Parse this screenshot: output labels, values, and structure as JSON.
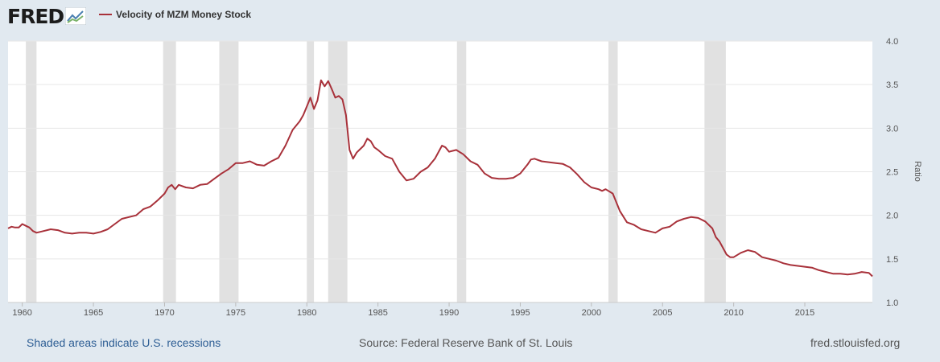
{
  "brand": {
    "logo_text": "FRED",
    "logo_icon": "chart-line-icon"
  },
  "colors": {
    "background": "#e1e9f0",
    "plot_bg": "#ffffff",
    "series": "#a8313a",
    "recession": "#e1e1e1",
    "grid": "#e6e6e6",
    "footer_link": "#2f5f95"
  },
  "footer": {
    "recessions_note": "Shaded areas indicate U.S. recessions",
    "source": "Source: Federal Reserve Bank of St. Louis",
    "site": "fred.stlouisfed.org"
  },
  "chart_data": {
    "type": "line",
    "title": "",
    "xlabel": "",
    "ylabel": "Ratio",
    "xlim": [
      1959.0,
      2019.75
    ],
    "ylim": [
      1.0,
      4.0
    ],
    "grid": true,
    "legend": "top-left",
    "x_ticks": [
      {
        "value": 1960,
        "label": "1960"
      },
      {
        "value": 1965,
        "label": "1965"
      },
      {
        "value": 1970,
        "label": "1970"
      },
      {
        "value": 1975,
        "label": "1975"
      },
      {
        "value": 1980,
        "label": "1980"
      },
      {
        "value": 1985,
        "label": "1985"
      },
      {
        "value": 1990,
        "label": "1990"
      },
      {
        "value": 1995,
        "label": "1995"
      },
      {
        "value": 2000,
        "label": "2000"
      },
      {
        "value": 2005,
        "label": "2005"
      },
      {
        "value": 2010,
        "label": "2010"
      },
      {
        "value": 2015,
        "label": "2015"
      }
    ],
    "y_ticks": [
      {
        "value": 1.0,
        "label": "1.0"
      },
      {
        "value": 1.5,
        "label": "1.5"
      },
      {
        "value": 2.0,
        "label": "2.0"
      },
      {
        "value": 2.5,
        "label": "2.5"
      },
      {
        "value": 3.0,
        "label": "3.0"
      },
      {
        "value": 3.5,
        "label": "3.5"
      },
      {
        "value": 4.0,
        "label": "4.0"
      }
    ],
    "recessions": [
      [
        1960.25,
        1961.0
      ],
      [
        1969.9,
        1970.8
      ],
      [
        1973.85,
        1975.2
      ],
      [
        1980.0,
        1980.5
      ],
      [
        1981.5,
        1982.85
      ],
      [
        1990.55,
        1991.2
      ],
      [
        2001.2,
        2001.85
      ],
      [
        2007.95,
        2009.45
      ]
    ],
    "series": [
      {
        "name": "Velocity of MZM Money Stock",
        "points": [
          [
            1959.0,
            1.85
          ],
          [
            1959.25,
            1.87
          ],
          [
            1959.5,
            1.86
          ],
          [
            1959.75,
            1.86
          ],
          [
            1960.0,
            1.9
          ],
          [
            1960.25,
            1.88
          ],
          [
            1960.5,
            1.86
          ],
          [
            1960.75,
            1.82
          ],
          [
            1961.0,
            1.8
          ],
          [
            1961.5,
            1.82
          ],
          [
            1962.0,
            1.84
          ],
          [
            1962.5,
            1.83
          ],
          [
            1963.0,
            1.8
          ],
          [
            1963.5,
            1.79
          ],
          [
            1964.0,
            1.8
          ],
          [
            1964.5,
            1.8
          ],
          [
            1965.0,
            1.79
          ],
          [
            1965.5,
            1.81
          ],
          [
            1966.0,
            1.84
          ],
          [
            1966.5,
            1.9
          ],
          [
            1967.0,
            1.96
          ],
          [
            1967.5,
            1.98
          ],
          [
            1968.0,
            2.0
          ],
          [
            1968.5,
            2.07
          ],
          [
            1969.0,
            2.1
          ],
          [
            1969.5,
            2.17
          ],
          [
            1970.0,
            2.25
          ],
          [
            1970.25,
            2.32
          ],
          [
            1970.5,
            2.35
          ],
          [
            1970.75,
            2.3
          ],
          [
            1971.0,
            2.35
          ],
          [
            1971.5,
            2.32
          ],
          [
            1972.0,
            2.31
          ],
          [
            1972.5,
            2.35
          ],
          [
            1973.0,
            2.36
          ],
          [
            1973.5,
            2.42
          ],
          [
            1974.0,
            2.48
          ],
          [
            1974.5,
            2.53
          ],
          [
            1975.0,
            2.6
          ],
          [
            1975.5,
            2.6
          ],
          [
            1976.0,
            2.62
          ],
          [
            1976.5,
            2.58
          ],
          [
            1977.0,
            2.57
          ],
          [
            1977.5,
            2.62
          ],
          [
            1978.0,
            2.66
          ],
          [
            1978.5,
            2.8
          ],
          [
            1979.0,
            2.98
          ],
          [
            1979.5,
            3.08
          ],
          [
            1979.75,
            3.15
          ],
          [
            1980.0,
            3.25
          ],
          [
            1980.25,
            3.35
          ],
          [
            1980.5,
            3.22
          ],
          [
            1980.75,
            3.32
          ],
          [
            1981.0,
            3.55
          ],
          [
            1981.25,
            3.48
          ],
          [
            1981.5,
            3.54
          ],
          [
            1981.75,
            3.45
          ],
          [
            1982.0,
            3.35
          ],
          [
            1982.25,
            3.37
          ],
          [
            1982.5,
            3.33
          ],
          [
            1982.75,
            3.15
          ],
          [
            1983.0,
            2.75
          ],
          [
            1983.25,
            2.65
          ],
          [
            1983.5,
            2.72
          ],
          [
            1984.0,
            2.8
          ],
          [
            1984.25,
            2.88
          ],
          [
            1984.5,
            2.85
          ],
          [
            1984.75,
            2.78
          ],
          [
            1985.0,
            2.75
          ],
          [
            1985.5,
            2.68
          ],
          [
            1986.0,
            2.65
          ],
          [
            1986.5,
            2.5
          ],
          [
            1987.0,
            2.4
          ],
          [
            1987.5,
            2.42
          ],
          [
            1988.0,
            2.5
          ],
          [
            1988.5,
            2.55
          ],
          [
            1989.0,
            2.65
          ],
          [
            1989.5,
            2.8
          ],
          [
            1989.75,
            2.78
          ],
          [
            1990.0,
            2.73
          ],
          [
            1990.5,
            2.75
          ],
          [
            1991.0,
            2.7
          ],
          [
            1991.5,
            2.62
          ],
          [
            1992.0,
            2.58
          ],
          [
            1992.5,
            2.48
          ],
          [
            1993.0,
            2.43
          ],
          [
            1993.5,
            2.42
          ],
          [
            1994.0,
            2.42
          ],
          [
            1994.5,
            2.43
          ],
          [
            1995.0,
            2.48
          ],
          [
            1995.5,
            2.58
          ],
          [
            1995.75,
            2.64
          ],
          [
            1996.0,
            2.65
          ],
          [
            1996.5,
            2.62
          ],
          [
            1997.0,
            2.61
          ],
          [
            1997.5,
            2.6
          ],
          [
            1998.0,
            2.59
          ],
          [
            1998.5,
            2.55
          ],
          [
            1999.0,
            2.47
          ],
          [
            1999.5,
            2.38
          ],
          [
            2000.0,
            2.32
          ],
          [
            2000.5,
            2.3
          ],
          [
            2000.75,
            2.28
          ],
          [
            2001.0,
            2.3
          ],
          [
            2001.5,
            2.25
          ],
          [
            2001.75,
            2.15
          ],
          [
            2002.0,
            2.05
          ],
          [
            2002.5,
            1.92
          ],
          [
            2003.0,
            1.89
          ],
          [
            2003.5,
            1.84
          ],
          [
            2004.0,
            1.82
          ],
          [
            2004.5,
            1.8
          ],
          [
            2005.0,
            1.85
          ],
          [
            2005.5,
            1.87
          ],
          [
            2006.0,
            1.93
          ],
          [
            2006.5,
            1.96
          ],
          [
            2007.0,
            1.98
          ],
          [
            2007.5,
            1.97
          ],
          [
            2008.0,
            1.93
          ],
          [
            2008.5,
            1.85
          ],
          [
            2008.75,
            1.75
          ],
          [
            2009.0,
            1.7
          ],
          [
            2009.5,
            1.55
          ],
          [
            2009.75,
            1.52
          ],
          [
            2010.0,
            1.52
          ],
          [
            2010.5,
            1.57
          ],
          [
            2011.0,
            1.6
          ],
          [
            2011.5,
            1.58
          ],
          [
            2012.0,
            1.52
          ],
          [
            2012.5,
            1.5
          ],
          [
            2013.0,
            1.48
          ],
          [
            2013.5,
            1.45
          ],
          [
            2014.0,
            1.43
          ],
          [
            2014.5,
            1.42
          ],
          [
            2015.0,
            1.41
          ],
          [
            2015.5,
            1.4
          ],
          [
            2016.0,
            1.37
          ],
          [
            2016.5,
            1.35
          ],
          [
            2017.0,
            1.33
          ],
          [
            2017.5,
            1.33
          ],
          [
            2018.0,
            1.32
          ],
          [
            2018.5,
            1.33
          ],
          [
            2019.0,
            1.35
          ],
          [
            2019.5,
            1.34
          ],
          [
            2019.75,
            1.3
          ]
        ]
      }
    ]
  }
}
